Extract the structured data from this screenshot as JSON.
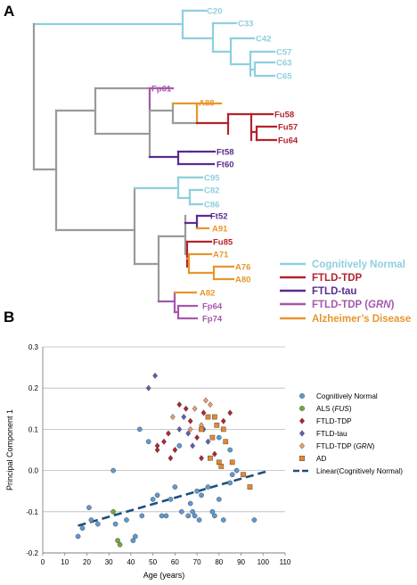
{
  "panels": {
    "a": "A",
    "b": "B"
  },
  "colors": {
    "normal": "#8ecfdf",
    "ftld_tdp": "#b3232d",
    "ftld_tau": "#5a2b8e",
    "ftld_grn": "#a657ad",
    "ad": "#e7962b",
    "internal": "#9a9a9a",
    "als": "#78a83c",
    "trend": "#1f4f7d"
  },
  "dendrogram": {
    "leaves": [
      {
        "label": "C20",
        "group": "normal"
      },
      {
        "label": "C33",
        "group": "normal"
      },
      {
        "label": "C42",
        "group": "normal"
      },
      {
        "label": "C57",
        "group": "normal"
      },
      {
        "label": "C63",
        "group": "normal"
      },
      {
        "label": "C65",
        "group": "normal"
      },
      {
        "label": "Fp61",
        "group": "ftld_grn"
      },
      {
        "label": "A88",
        "group": "ad"
      },
      {
        "label": "Fu58",
        "group": "ftld_tdp"
      },
      {
        "label": "Fu57",
        "group": "ftld_tdp"
      },
      {
        "label": "Fu64",
        "group": "ftld_tdp"
      },
      {
        "label": "Ft58",
        "group": "ftld_tau"
      },
      {
        "label": "Ft60",
        "group": "ftld_tau"
      },
      {
        "label": "C95",
        "group": "normal"
      },
      {
        "label": "C82",
        "group": "normal"
      },
      {
        "label": "C86",
        "group": "normal"
      },
      {
        "label": "Ft52",
        "group": "ftld_tau"
      },
      {
        "label": "A91",
        "group": "ad"
      },
      {
        "label": "Fu85",
        "group": "ftld_tdp"
      },
      {
        "label": "A71",
        "group": "ad"
      },
      {
        "label": "A76",
        "group": "ad"
      },
      {
        "label": "A80",
        "group": "ad"
      },
      {
        "label": "A82",
        "group": "ad"
      },
      {
        "label": "Fp64",
        "group": "ftld_grn"
      },
      {
        "label": "Fp74",
        "group": "ftld_grn"
      }
    ],
    "legend": [
      {
        "label": "Cognitively Normal",
        "group": "normal"
      },
      {
        "label": "FTLD-TDP",
        "group": "ftld_tdp"
      },
      {
        "label": "FTLD-tau",
        "group": "ftld_tau"
      },
      {
        "label_pre": "FTLD-TDP (",
        "label_it": "GRN",
        "label_post": ")",
        "group": "ftld_grn"
      },
      {
        "label": "Alzheimer’s Disease",
        "group": "ad"
      }
    ]
  },
  "chart_data": {
    "type": "scatter",
    "xlabel": "Age (years)",
    "ylabel": "Principal Component 1",
    "xlim": [
      0,
      110
    ],
    "ylim": [
      -0.2,
      0.3
    ],
    "xticks": [
      "0",
      "10",
      "20",
      "30",
      "40",
      "50",
      "60",
      "70",
      "80",
      "90",
      "100",
      "110"
    ],
    "yticks": [
      "-0.2",
      "-0.1",
      "0.0",
      "0.1",
      "0.2",
      "0.3"
    ],
    "grid": "horizontal",
    "legend_position": "right",
    "series": [
      {
        "name": "Cognitively Normal",
        "marker": "circle",
        "color": "#5b9bd5",
        "points": [
          [
            16,
            -0.16
          ],
          [
            18,
            -0.14
          ],
          [
            21,
            -0.09
          ],
          [
            22,
            -0.12
          ],
          [
            25,
            -0.13
          ],
          [
            32,
            -0.0
          ],
          [
            33,
            -0.13
          ],
          [
            38,
            -0.12
          ],
          [
            41,
            -0.17
          ],
          [
            42,
            -0.16
          ],
          [
            45,
            -0.11
          ],
          [
            48,
            0.07
          ],
          [
            50,
            -0.07
          ],
          [
            52,
            -0.06
          ],
          [
            54,
            -0.11
          ],
          [
            56,
            -0.11
          ],
          [
            58,
            -0.07
          ],
          [
            60,
            -0.04
          ],
          [
            63,
            -0.1
          ],
          [
            66,
            -0.11
          ],
          [
            67,
            -0.08
          ],
          [
            68,
            -0.1
          ],
          [
            69,
            -0.11
          ],
          [
            70,
            -0.05
          ],
          [
            71,
            -0.12
          ],
          [
            72,
            -0.06
          ],
          [
            75,
            -0.04
          ],
          [
            77,
            -0.1
          ],
          [
            78,
            -0.11
          ],
          [
            80,
            -0.07
          ],
          [
            82,
            -0.12
          ],
          [
            85,
            -0.03
          ],
          [
            86,
            -0.01
          ],
          [
            88,
            0.0
          ],
          [
            96,
            -0.12
          ],
          [
            44,
            0.1
          ],
          [
            80,
            0.08
          ],
          [
            85,
            0.05
          ],
          [
            62,
            0.06
          ]
        ]
      },
      {
        "name": "ALS (FUS)",
        "name_pre": "ALS (",
        "name_it": "FUS",
        "name_post": ")",
        "marker": "circle",
        "color": "#78a83c",
        "points": [
          [
            34,
            -0.17
          ],
          [
            35,
            -0.18
          ],
          [
            32,
            -0.1
          ]
        ]
      },
      {
        "name": "FTLD-TDP",
        "marker": "diamond",
        "color": "#b3232d",
        "points": [
          [
            52,
            0.06
          ],
          [
            55,
            0.07
          ],
          [
            58,
            0.03
          ],
          [
            60,
            0.05
          ],
          [
            62,
            0.16
          ],
          [
            65,
            0.15
          ],
          [
            67,
            0.12
          ],
          [
            70,
            0.08
          ],
          [
            72,
            0.03
          ],
          [
            78,
            0.04
          ],
          [
            82,
            0.12
          ],
          [
            85,
            0.14
          ],
          [
            57,
            0.09
          ],
          [
            73,
            0.14
          ],
          [
            52,
            0.05
          ]
        ]
      },
      {
        "name": "FTLD-tau",
        "marker": "diamond",
        "color": "#5a5fb8",
        "points": [
          [
            48,
            0.2
          ],
          [
            51,
            0.23
          ],
          [
            62,
            0.1
          ],
          [
            64,
            0.13
          ],
          [
            66,
            0.09
          ],
          [
            68,
            0.06
          ],
          [
            73,
            0.1
          ],
          [
            75,
            0.07
          ]
        ]
      },
      {
        "name": "FTLD-TDP (GRN)",
        "name_pre": "FTLD-TDP (",
        "name_it": "GRN",
        "name_post": ")",
        "marker": "diamond",
        "color": "#f19a6c",
        "points": [
          [
            59,
            0.13
          ],
          [
            69,
            0.15
          ],
          [
            72,
            0.11
          ],
          [
            74,
            0.17
          ],
          [
            76,
            0.16
          ],
          [
            67,
            0.1
          ]
        ]
      },
      {
        "name": "AD",
        "marker": "square",
        "color": "#e7882b",
        "points": [
          [
            72,
            0.1
          ],
          [
            75,
            0.13
          ],
          [
            77,
            0.08
          ],
          [
            78,
            0.13
          ],
          [
            79,
            0.11
          ],
          [
            80,
            0.02
          ],
          [
            82,
            0.1
          ],
          [
            83,
            0.07
          ],
          [
            86,
            0.02
          ],
          [
            91,
            -0.01
          ],
          [
            94,
            -0.04
          ],
          [
            76,
            0.03
          ],
          [
            81,
            0.01
          ]
        ]
      }
    ],
    "trendline": {
      "name": "Linear(Cognitively Normal)",
      "color": "#1f4f7d",
      "x": [
        16,
        103
      ],
      "y": [
        -0.134,
        0.0
      ]
    }
  }
}
